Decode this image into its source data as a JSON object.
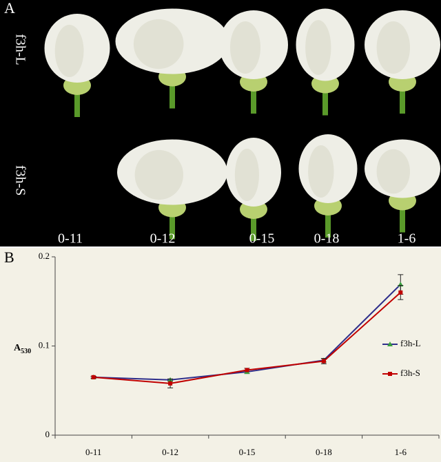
{
  "panel_a": {
    "label": "A",
    "rows": [
      "f3h-L",
      "f3h-S"
    ],
    "columns": [
      "0-11",
      "0-12",
      "0-15",
      "0-18",
      "1-6"
    ]
  },
  "chart_data": {
    "type": "line",
    "panel_label": "B",
    "y_label": {
      "text": "A",
      "subscript": "530"
    },
    "categories": [
      "0-11",
      "0-12",
      "0-15",
      "0-18",
      "1-6"
    ],
    "series": [
      {
        "name": "f3h-L",
        "color": "#2e2e8a",
        "marker_color": "#3aa040",
        "marker": "triangle",
        "values": [
          0.065,
          0.062,
          0.071,
          0.084,
          0.169
        ],
        "errors": [
          0.001,
          0.001,
          0.002,
          0.002,
          0.011
        ]
      },
      {
        "name": "f3h-S",
        "color": "#c00000",
        "marker_color": "#c00000",
        "marker": "square",
        "values": [
          0.065,
          0.058,
          0.073,
          0.083,
          0.16
        ],
        "errors": [
          0.001,
          0.005,
          0.002,
          0.003,
          0.008
        ]
      }
    ],
    "ylim": [
      0,
      0.2
    ],
    "yticks": [
      0,
      0.1,
      0.2
    ],
    "legend": "right"
  }
}
